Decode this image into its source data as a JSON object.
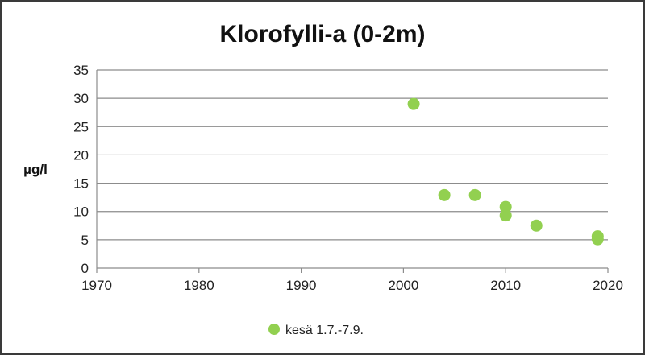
{
  "chart_data": {
    "type": "scatter",
    "title": "Klorofylli-a (0-2m)",
    "ylabel": "µg/l",
    "xlabel": "",
    "xlim": [
      1970,
      2020
    ],
    "ylim": [
      0,
      35
    ],
    "x_ticks": [
      1970,
      1980,
      1990,
      2000,
      2010,
      2020
    ],
    "y_ticks": [
      0,
      5,
      10,
      15,
      20,
      25,
      30,
      35
    ],
    "grid": "horizontal",
    "legend_position": "bottom",
    "series": [
      {
        "name": "kesä 1.7.-7.9.",
        "color": "#92d050",
        "points": [
          {
            "x": 2001,
            "y": 29.0
          },
          {
            "x": 2004,
            "y": 12.9
          },
          {
            "x": 2007,
            "y": 12.9
          },
          {
            "x": 2010,
            "y": 10.8
          },
          {
            "x": 2010,
            "y": 9.3
          },
          {
            "x": 2013,
            "y": 7.5
          },
          {
            "x": 2019,
            "y": 5.6
          },
          {
            "x": 2019,
            "y": 5.1
          }
        ]
      }
    ]
  }
}
